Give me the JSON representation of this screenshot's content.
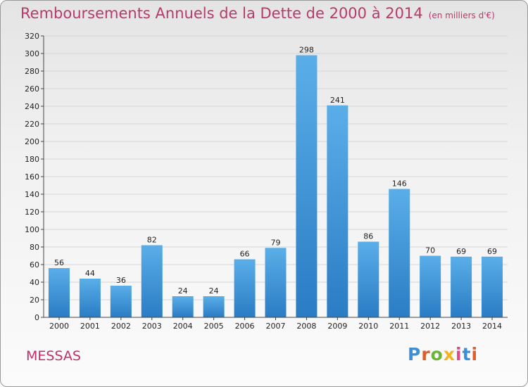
{
  "title": "Remboursements Annuels de la Dette de 2000 à 2014",
  "unit_label": "(en milliers d'€)",
  "town": "MESSAS",
  "logo": {
    "text": "Proxiti",
    "colors": [
      "#3a8fd6",
      "#e05c2a",
      "#6ab535",
      "#f2b320",
      "#d94a8c",
      "#3a8fd6",
      "#e05c2a"
    ]
  },
  "colors": {
    "bar_top": "#5aaee8",
    "bar_bottom": "#2a7cc4",
    "title": "#b83a6a",
    "town": "#c0306a"
  },
  "chart_data": {
    "type": "bar",
    "title": "Remboursements Annuels de la Dette de 2000 à 2014",
    "xlabel": "",
    "ylabel": "",
    "categories": [
      "2000",
      "2001",
      "2002",
      "2003",
      "2004",
      "2005",
      "2006",
      "2007",
      "2008",
      "2009",
      "2010",
      "2011",
      "2012",
      "2013",
      "2014"
    ],
    "values": [
      56,
      44,
      36,
      82,
      24,
      24,
      66,
      79,
      298,
      241,
      86,
      146,
      70,
      69,
      69
    ],
    "ylim": [
      0,
      320
    ],
    "yticks": [
      0,
      20,
      40,
      60,
      80,
      100,
      120,
      140,
      160,
      180,
      200,
      220,
      240,
      260,
      280,
      300,
      320
    ],
    "grid": true,
    "data_labels": true
  }
}
